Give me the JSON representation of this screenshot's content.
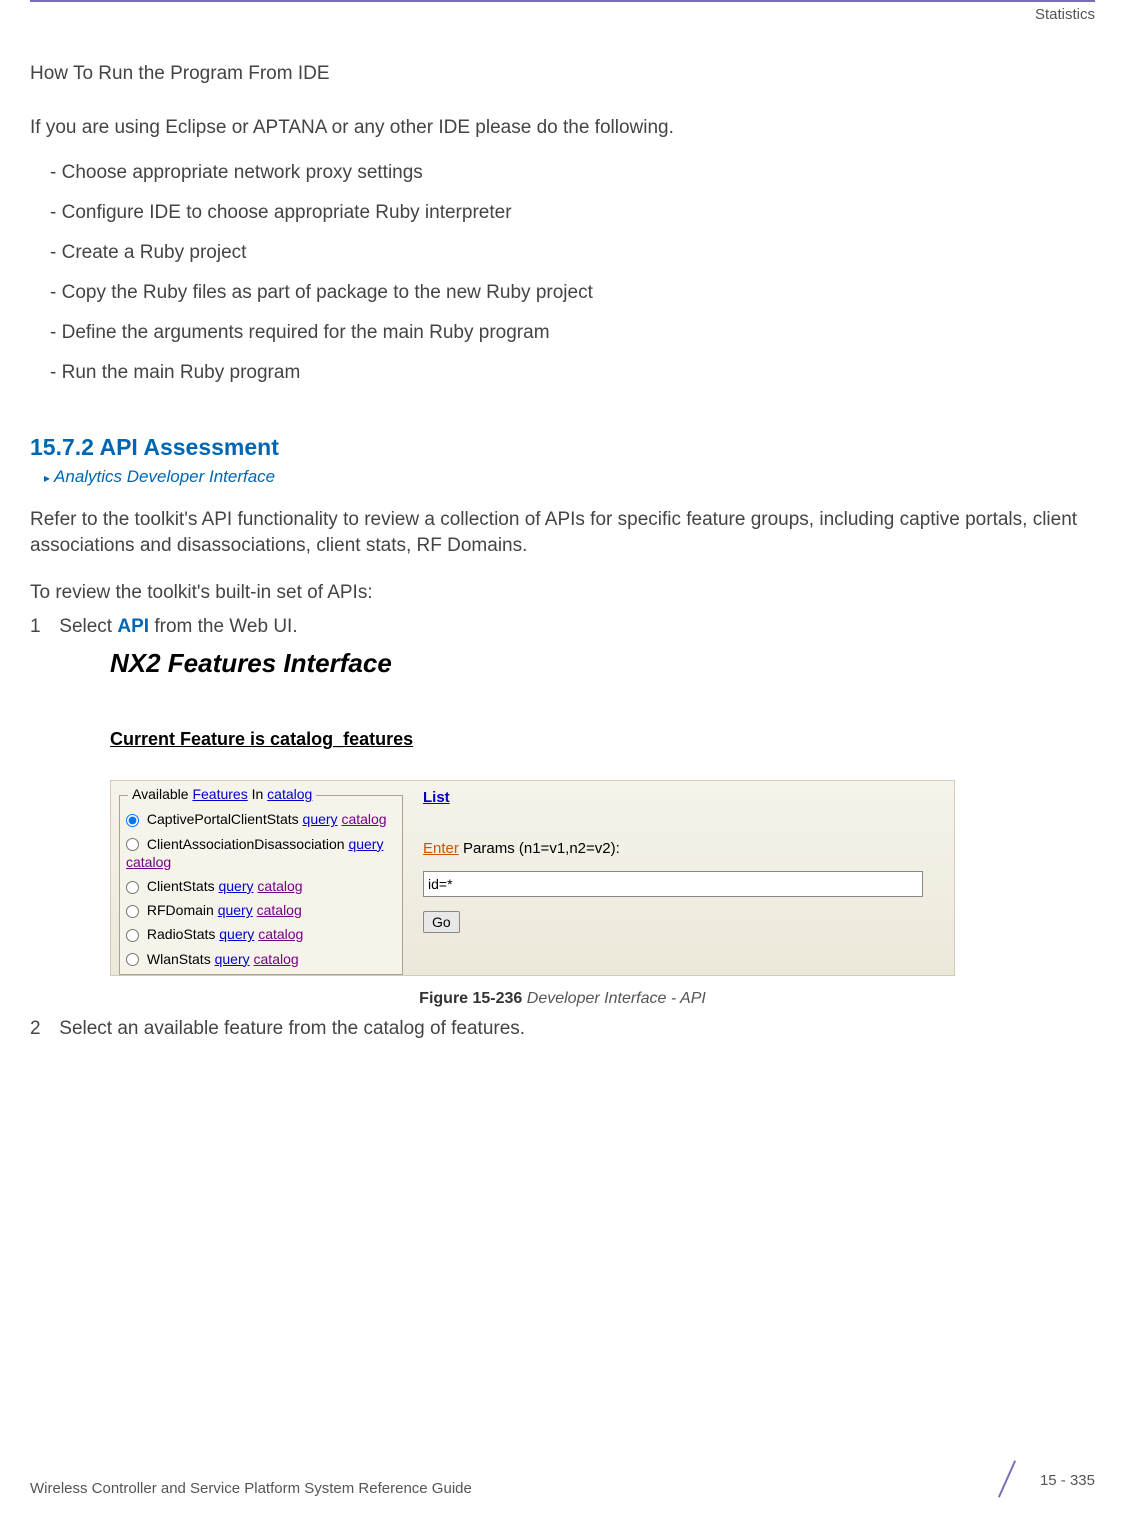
{
  "header": {
    "category": "Statistics"
  },
  "section_title": "How To Run the Program From IDE",
  "intro_p": "If you are using Eclipse or APTANA or any other IDE please do the following.",
  "bullets": [
    "- Choose appropriate network proxy settings",
    "- Configure IDE to choose appropriate Ruby interpreter",
    "- Create a Ruby project",
    "- Copy the Ruby files as part of package to the new Ruby project",
    "- Define the arguments required for the main Ruby program",
    "- Run the main Ruby program"
  ],
  "subsection": {
    "number": "15.7.2 API Assessment",
    "breadcrumb": "Analytics Developer Interface",
    "p1": "Refer to the toolkit's API functionality to review a collection of APIs for specific feature groups, including captive portals, client associations and disassociations, client stats, RF Domains.",
    "p2": "To review the toolkit's built-in set of APIs:",
    "step1_num": "1",
    "step1_a": "Select ",
    "step1_api": "API",
    "step1_b": " from the Web UI.",
    "step2_num": "2",
    "step2": "Select an available feature from the catalog of features."
  },
  "screenshot": {
    "title": "NX2 Features Interface",
    "current_feature_label": "Current Feature is ",
    "current_feature_value": "catalog_features",
    "legend_a": "Available ",
    "legend_b": "Features",
    "legend_c": " In ",
    "legend_d": "catalog",
    "options": [
      {
        "name": "CaptivePortalClientStats",
        "checked": true
      },
      {
        "name": "ClientAssociationDisassociation",
        "checked": false
      },
      {
        "name": "ClientStats",
        "checked": false
      },
      {
        "name": "RFDomain",
        "checked": false
      },
      {
        "name": "RadioStats",
        "checked": false
      },
      {
        "name": "WlanStats",
        "checked": false
      }
    ],
    "query_label": "query",
    "catalog_label": "catalog",
    "list_label": "List",
    "enter_a": "Enter",
    "enter_b": " Params (n1=v1,n2=v2):",
    "input_value": "id=*",
    "go_label": "Go"
  },
  "figure": {
    "bold": "Figure 15-236",
    "rest": "  Developer Interface - API"
  },
  "footer": {
    "left": "Wireless Controller and Service Platform System Reference Guide",
    "right": "15 - 335"
  }
}
